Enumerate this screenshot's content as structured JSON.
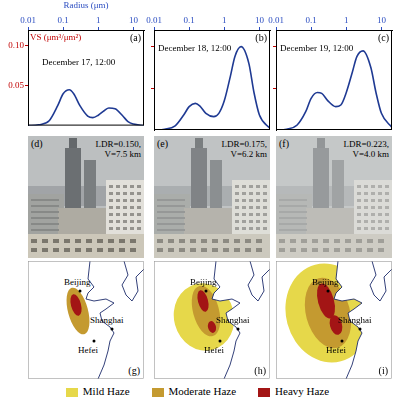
{
  "chart_data": [
    {
      "type": "line",
      "panel_label": "(a)",
      "title": "December 17, 12:00",
      "x_label": "Radius (μm)",
      "y_label": "VS (μm³/μm²)",
      "log": "x",
      "tick_labels": true,
      "color": "#1f3a93",
      "x": [
        0.01,
        0.02,
        0.04,
        0.07,
        0.1,
        0.15,
        0.2,
        0.3,
        0.5,
        0.7,
        1,
        1.5,
        2,
        3,
        5,
        7,
        10,
        20
      ],
      "values": [
        0,
        0.001,
        0.006,
        0.025,
        0.04,
        0.045,
        0.04,
        0.025,
        0.012,
        0.01,
        0.013,
        0.019,
        0.022,
        0.021,
        0.012,
        0.005,
        0.002,
        0
      ],
      "xlim": [
        0.01,
        20
      ],
      "xticks": [
        0.01,
        0.1,
        1,
        10
      ],
      "ylim": [
        0,
        0.12
      ],
      "yticks": [
        0.05,
        {
          "value": 0.1,
          "label": "0.10"
        }
      ]
    },
    {
      "type": "line",
      "panel_label": "(b)",
      "title": "December 18, 12:00",
      "log": "x",
      "tick_labels": "x",
      "color": "#1f3a93",
      "x": [
        0.01,
        0.02,
        0.04,
        0.07,
        0.1,
        0.15,
        0.2,
        0.3,
        0.5,
        0.7,
        1,
        1.5,
        2,
        3,
        5,
        7,
        10,
        20
      ],
      "values": [
        0,
        0.001,
        0.005,
        0.018,
        0.028,
        0.032,
        0.029,
        0.02,
        0.016,
        0.02,
        0.035,
        0.065,
        0.088,
        0.1,
        0.08,
        0.045,
        0.018,
        0.002
      ],
      "xlim": [
        0.01,
        20
      ],
      "xticks": [
        0.01,
        0.1,
        1,
        10
      ],
      "ylim": [
        0,
        0.12
      ],
      "yticks": [
        0.05,
        {
          "value": 0.1,
          "label": "0.10"
        }
      ]
    },
    {
      "type": "line",
      "panel_label": "(c)",
      "title": "December 19, 12:00",
      "log": "x",
      "tick_labels": "x",
      "color": "#1f3a93",
      "x": [
        0.01,
        0.02,
        0.04,
        0.07,
        0.1,
        0.15,
        0.2,
        0.3,
        0.5,
        0.7,
        1,
        1.5,
        2,
        3,
        5,
        7,
        10,
        20
      ],
      "values": [
        0,
        0.001,
        0.006,
        0.022,
        0.038,
        0.045,
        0.044,
        0.035,
        0.028,
        0.03,
        0.045,
        0.07,
        0.088,
        0.095,
        0.075,
        0.045,
        0.02,
        0.003
      ],
      "xlim": [
        0.01,
        20
      ],
      "xticks": [
        0.01,
        0.1,
        1,
        10
      ],
      "ylim": [
        0,
        0.12
      ],
      "yticks": [
        0.05,
        {
          "value": 0.1,
          "label": "0.10"
        }
      ]
    }
  ],
  "photos": [
    {
      "panel_label": "(d)",
      "annotations": [
        "LDR=0.150,",
        "V=7.5 km"
      ]
    },
    {
      "panel_label": "(e)",
      "annotations": [
        "LDR=0.175,",
        "V=6.2 km"
      ]
    },
    {
      "panel_label": "(f)",
      "annotations": [
        "LDR=0.223,",
        "V=4.0 km"
      ]
    }
  ],
  "maps": {
    "panels": [
      {
        "panel_label": "(g)"
      },
      {
        "panel_label": "(h)"
      },
      {
        "panel_label": "(i)"
      }
    ],
    "cities": [
      "Beijing",
      "Shanghai",
      "Hefei"
    ],
    "legend": [
      {
        "label": "Mild Haze",
        "color": "#e6d84a"
      },
      {
        "label": "Moderate Haze",
        "color": "#c49a30"
      },
      {
        "label": "Heavy Haze",
        "color": "#a31515"
      }
    ]
  }
}
